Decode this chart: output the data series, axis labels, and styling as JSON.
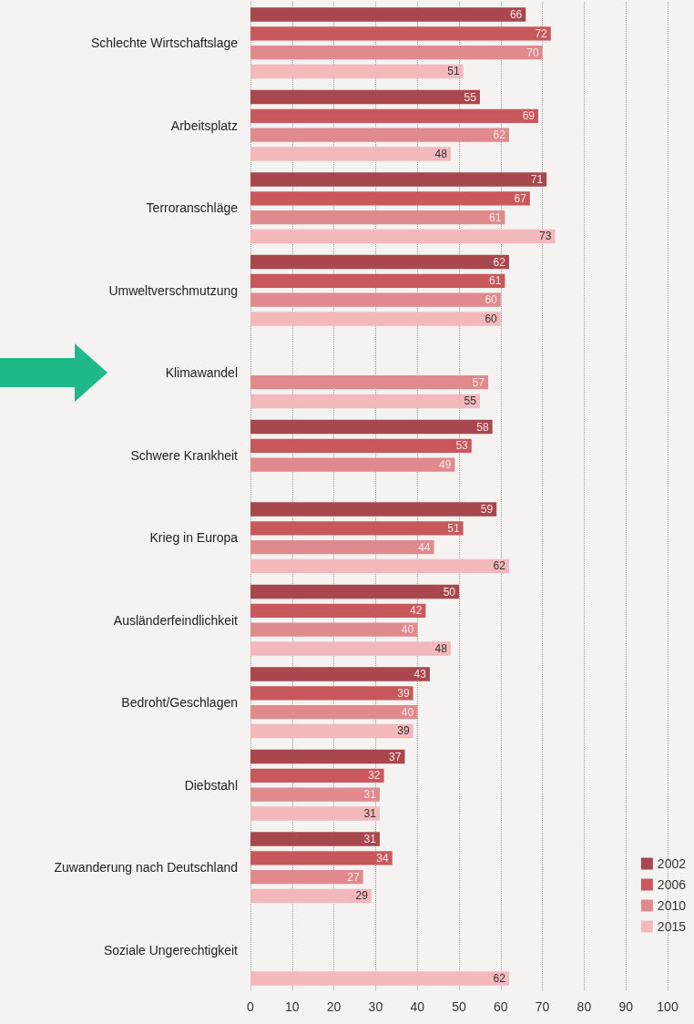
{
  "chart_data": {
    "type": "bar",
    "orientation": "horizontal",
    "categories": [
      "Schlechte Wirtschaftslage",
      "Arbeitsplatz",
      "Terroranschläge",
      "Umweltverschmutzung",
      "Klimawandel",
      "Schwere Krankheit",
      "Krieg in Europa",
      "Ausländerfeindlichkeit",
      "Bedroht/Geschlagen",
      "Diebstahl",
      "Zuwanderung nach Deutschland",
      "Soziale Ungerechtigkeit"
    ],
    "series": [
      {
        "name": "2002",
        "color": "#a8474d",
        "values": [
          66,
          55,
          71,
          62,
          null,
          58,
          59,
          50,
          43,
          37,
          31,
          null
        ]
      },
      {
        "name": "2006",
        "color": "#c9585c",
        "values": [
          72,
          69,
          67,
          61,
          null,
          53,
          51,
          42,
          39,
          32,
          34,
          null
        ]
      },
      {
        "name": "2010",
        "color": "#e08a8e",
        "values": [
          70,
          62,
          61,
          60,
          57,
          49,
          44,
          40,
          40,
          31,
          27,
          null
        ]
      },
      {
        "name": "2015",
        "color": "#f2b8bc",
        "values": [
          51,
          48,
          73,
          60,
          55,
          null,
          62,
          48,
          39,
          31,
          29,
          62
        ]
      }
    ],
    "xlim": [
      0,
      100
    ],
    "xticks": [
      0,
      10,
      20,
      30,
      40,
      50,
      60,
      70,
      80,
      90,
      100
    ],
    "grid": "x",
    "legend": "bottom right",
    "data_labels": true
  }
}
